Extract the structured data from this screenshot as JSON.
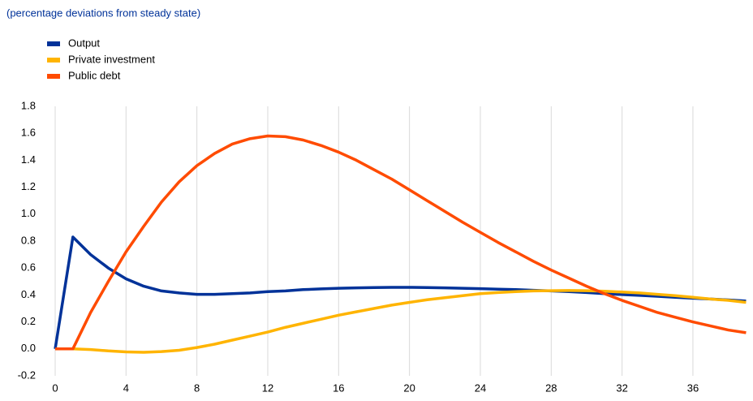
{
  "chart_data": {
    "type": "line",
    "subtitle": "(percentage deviations from steady state)",
    "x": [
      0,
      1,
      2,
      3,
      4,
      5,
      6,
      7,
      8,
      9,
      10,
      11,
      12,
      13,
      14,
      15,
      16,
      17,
      18,
      19,
      20,
      21,
      22,
      23,
      24,
      25,
      26,
      27,
      28,
      29,
      30,
      31,
      32,
      33,
      34,
      35,
      36,
      37,
      38,
      39
    ],
    "series": [
      {
        "name": "Output",
        "color": "#003299",
        "values": [
          0,
          0.83,
          0.7,
          0.6,
          0.52,
          0.465,
          0.43,
          0.415,
          0.405,
          0.405,
          0.41,
          0.415,
          0.425,
          0.43,
          0.44,
          0.445,
          0.45,
          0.453,
          0.455,
          0.457,
          0.457,
          0.455,
          0.453,
          0.45,
          0.447,
          0.443,
          0.44,
          0.435,
          0.43,
          0.425,
          0.418,
          0.41,
          0.403,
          0.397,
          0.39,
          0.383,
          0.376,
          0.37,
          0.363,
          0.355
        ]
      },
      {
        "name": "Private investment",
        "color": "#ffb400",
        "values": [
          0,
          0,
          -0.005,
          -0.015,
          -0.022,
          -0.025,
          -0.02,
          -0.01,
          0.01,
          0.035,
          0.065,
          0.095,
          0.125,
          0.16,
          0.19,
          0.22,
          0.25,
          0.275,
          0.3,
          0.325,
          0.345,
          0.365,
          0.38,
          0.395,
          0.41,
          0.418,
          0.425,
          0.43,
          0.432,
          0.433,
          0.432,
          0.428,
          0.422,
          0.415,
          0.405,
          0.395,
          0.383,
          0.37,
          0.36,
          0.345
        ]
      },
      {
        "name": "Public debt",
        "color": "#ff4b00",
        "values": [
          0,
          0,
          0.27,
          0.5,
          0.72,
          0.91,
          1.09,
          1.24,
          1.36,
          1.45,
          1.52,
          1.56,
          1.58,
          1.575,
          1.55,
          1.51,
          1.46,
          1.4,
          1.33,
          1.26,
          1.18,
          1.1,
          1.02,
          0.94,
          0.865,
          0.79,
          0.72,
          0.65,
          0.585,
          0.525,
          0.465,
          0.41,
          0.36,
          0.315,
          0.27,
          0.235,
          0.2,
          0.17,
          0.14,
          0.12
        ]
      }
    ],
    "xlim": [
      0,
      39.3
    ],
    "xticks": [
      0,
      4,
      8,
      12,
      16,
      20,
      24,
      28,
      32,
      36
    ],
    "ylim": [
      -0.2,
      1.8
    ],
    "yticks": [
      -0.2,
      {
        "value": 0,
        "label": "0.0"
      },
      0.2,
      0.4,
      0.6,
      0.8,
      {
        "value": 1,
        "label": "1.0"
      },
      1.2,
      1.4,
      1.6,
      1.8
    ],
    "grid": "x",
    "legend": "top-left"
  }
}
